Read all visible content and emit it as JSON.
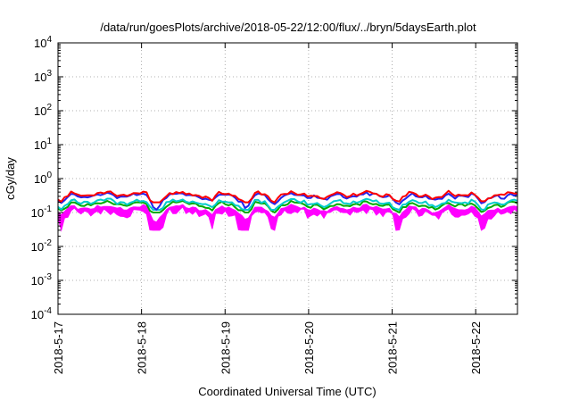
{
  "chart_data": {
    "type": "line",
    "title": "/data/run/goesPlots/archive/2018-05-22/12:00/flux/../bryn/5daysEarth.plot",
    "xlabel": "Coordinated Universal Time (UTC)",
    "ylabel": "cGy/day",
    "yscale": "log",
    "ylim": [
      0.0001,
      10000
    ],
    "xlim": [
      "2018-05-17 00:00",
      "2018-05-22 12:00"
    ],
    "grid": true,
    "x_ticks": [
      "2018-5-17",
      "2018-5-18",
      "2018-5-19",
      "2018-5-20",
      "2018-5-21",
      "2018-5-22"
    ],
    "y_ticks": [
      {
        "value": 0.0001,
        "base": "10",
        "exp": "-4"
      },
      {
        "value": 0.001,
        "base": "10",
        "exp": "-3"
      },
      {
        "value": 0.01,
        "base": "10",
        "exp": "-2"
      },
      {
        "value": 0.1,
        "base": "10",
        "exp": "-1"
      },
      {
        "value": 1,
        "base": "10",
        "exp": "0"
      },
      {
        "value": 10,
        "base": "10",
        "exp": "1"
      },
      {
        "value": 100,
        "base": "10",
        "exp": "2"
      },
      {
        "value": 1000,
        "base": "10",
        "exp": "3"
      },
      {
        "value": 10000,
        "base": "10",
        "exp": "4"
      }
    ],
    "series": [
      {
        "color": "#ff0000",
        "min": 0.2,
        "typical": 0.36,
        "max": 0.45,
        "fill": false
      },
      {
        "color": "#2222ee",
        "min": 0.09,
        "typical": 0.32,
        "max": 0.5,
        "fill": false
      },
      {
        "color": "#00cccc",
        "min": 0.12,
        "typical": 0.21,
        "max": 0.26,
        "fill": false
      },
      {
        "color": "#00aa00",
        "min": 0.1,
        "typical": 0.18,
        "max": 0.22,
        "fill": false
      },
      {
        "color": "#ff00ff",
        "min": 0.03,
        "typical": 0.14,
        "max": 0.2,
        "fill": true
      }
    ],
    "dips": [
      {
        "time": "2018-05-17 01:00",
        "factor": 0.55
      },
      {
        "time": "2018-05-18 04:00",
        "factor": 0.3
      },
      {
        "time": "2018-05-18 20:00",
        "factor": 0.6
      },
      {
        "time": "2018-05-19 06:00",
        "factor": 0.35
      },
      {
        "time": "2018-05-19 14:00",
        "factor": 0.6
      },
      {
        "time": "2018-05-20 05:00",
        "factor": 0.65
      },
      {
        "time": "2018-05-21 02:00",
        "factor": 0.5
      },
      {
        "time": "2018-05-21 13:00",
        "factor": 0.6
      },
      {
        "time": "2018-05-22 02:00",
        "factor": 0.45
      }
    ]
  }
}
